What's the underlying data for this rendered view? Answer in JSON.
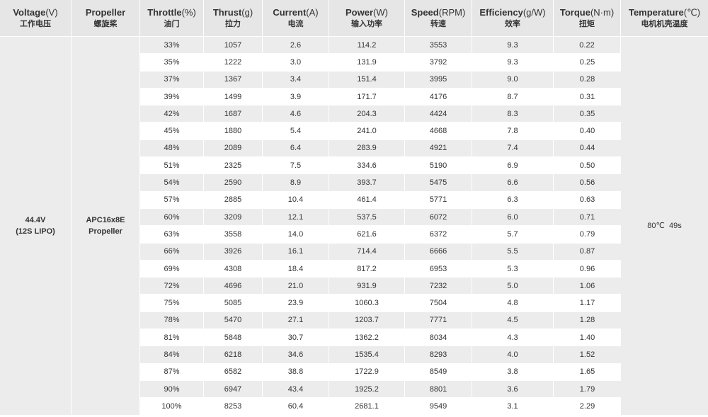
{
  "headers": [
    {
      "en": "Voltage",
      "unit": "(V)",
      "cn": "工作电压"
    },
    {
      "en": "Propeller",
      "unit": "",
      "cn": "螺旋桨"
    },
    {
      "en": "Throttle",
      "unit": "(%)",
      "cn": "油门"
    },
    {
      "en": "Thrust",
      "unit": "(g)",
      "cn": "拉力"
    },
    {
      "en": "Current",
      "unit": "(A)",
      "cn": "电流"
    },
    {
      "en": "Power",
      "unit": "(W)",
      "cn": "输入功率"
    },
    {
      "en": "Speed",
      "unit": "(RPM)",
      "cn": "转速"
    },
    {
      "en": "Efficiency",
      "unit": "(g/W)",
      "cn": "效率"
    },
    {
      "en": "Torque",
      "unit": "(N·m)",
      "cn": "扭矩"
    },
    {
      "en": "Temperature",
      "unit": "(℃)",
      "cn": "电机机壳温度"
    }
  ],
  "voltage": {
    "line1": "44.4V",
    "line2": "(12S LIPO)"
  },
  "propeller": {
    "line1": "APC16x8E",
    "line2": "Propeller"
  },
  "temperature": "80℃  49s",
  "rows": [
    [
      "33%",
      "1057",
      "2.6",
      "114.2",
      "3553",
      "9.3",
      "0.22"
    ],
    [
      "35%",
      "1222",
      "3.0",
      "131.9",
      "3792",
      "9.3",
      "0.25"
    ],
    [
      "37%",
      "1367",
      "3.4",
      "151.4",
      "3995",
      "9.0",
      "0.28"
    ],
    [
      "39%",
      "1499",
      "3.9",
      "171.7",
      "4176",
      "8.7",
      "0.31"
    ],
    [
      "42%",
      "1687",
      "4.6",
      "204.3",
      "4424",
      "8.3",
      "0.35"
    ],
    [
      "45%",
      "1880",
      "5.4",
      "241.0",
      "4668",
      "7.8",
      "0.40"
    ],
    [
      "48%",
      "2089",
      "6.4",
      "283.9",
      "4921",
      "7.4",
      "0.44"
    ],
    [
      "51%",
      "2325",
      "7.5",
      "334.6",
      "5190",
      "6.9",
      "0.50"
    ],
    [
      "54%",
      "2590",
      "8.9",
      "393.7",
      "5475",
      "6.6",
      "0.56"
    ],
    [
      "57%",
      "2885",
      "10.4",
      "461.4",
      "5771",
      "6.3",
      "0.63"
    ],
    [
      "60%",
      "3209",
      "12.1",
      "537.5",
      "6072",
      "6.0",
      "0.71"
    ],
    [
      "63%",
      "3558",
      "14.0",
      "621.6",
      "6372",
      "5.7",
      "0.79"
    ],
    [
      "66%",
      "3926",
      "16.1",
      "714.4",
      "6666",
      "5.5",
      "0.87"
    ],
    [
      "69%",
      "4308",
      "18.4",
      "817.2",
      "6953",
      "5.3",
      "0.96"
    ],
    [
      "72%",
      "4696",
      "21.0",
      "931.9",
      "7232",
      "5.0",
      "1.06"
    ],
    [
      "75%",
      "5085",
      "23.9",
      "1060.3",
      "7504",
      "4.8",
      "1.17"
    ],
    [
      "78%",
      "5470",
      "27.1",
      "1203.7",
      "7771",
      "4.5",
      "1.28"
    ],
    [
      "81%",
      "5848",
      "30.7",
      "1362.2",
      "8034",
      "4.3",
      "1.40"
    ],
    [
      "84%",
      "6218",
      "34.6",
      "1535.4",
      "8293",
      "4.0",
      "1.52"
    ],
    [
      "87%",
      "6582",
      "38.8",
      "1722.9",
      "8549",
      "3.8",
      "1.65"
    ],
    [
      "90%",
      "6947",
      "43.4",
      "1925.2",
      "8801",
      "3.6",
      "1.79"
    ],
    [
      "100%",
      "8253",
      "60.4",
      "2681.1",
      "9549",
      "3.1",
      "2.29"
    ]
  ]
}
